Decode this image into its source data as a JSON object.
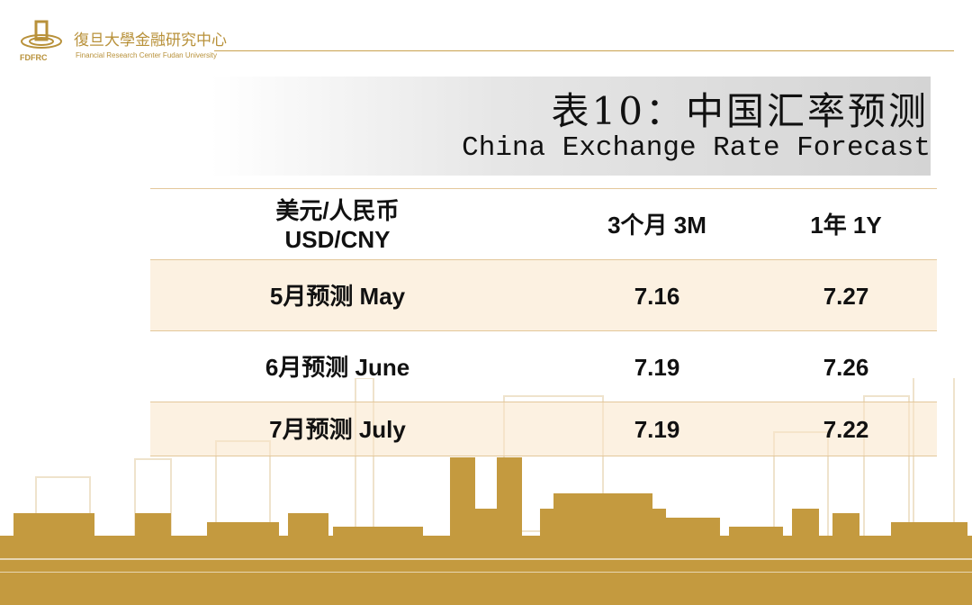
{
  "logo": {
    "abbr": "FDFRC",
    "name_cn": "復旦大學金融研究中心",
    "name_en": "Financial Research Center Fudan University"
  },
  "title": {
    "cn": "表10：中国汇率预测",
    "en": "China Exchange Rate Forecast"
  },
  "table": {
    "headers": [
      "美元/人民币",
      "USD/CNY",
      "3个月 3M",
      "1年 1Y"
    ],
    "rows": [
      {
        "label": "5月预测 May",
        "m3": "7.16",
        "y1": "7.27"
      },
      {
        "label": "6月预测 June",
        "m3": "7.19",
        "y1": "7.26"
      },
      {
        "label": "7月预测 July",
        "m3": "7.19",
        "y1": "7.22"
      }
    ]
  },
  "colors": {
    "gold": "#c9a24e",
    "band": "#fbe9d2"
  }
}
